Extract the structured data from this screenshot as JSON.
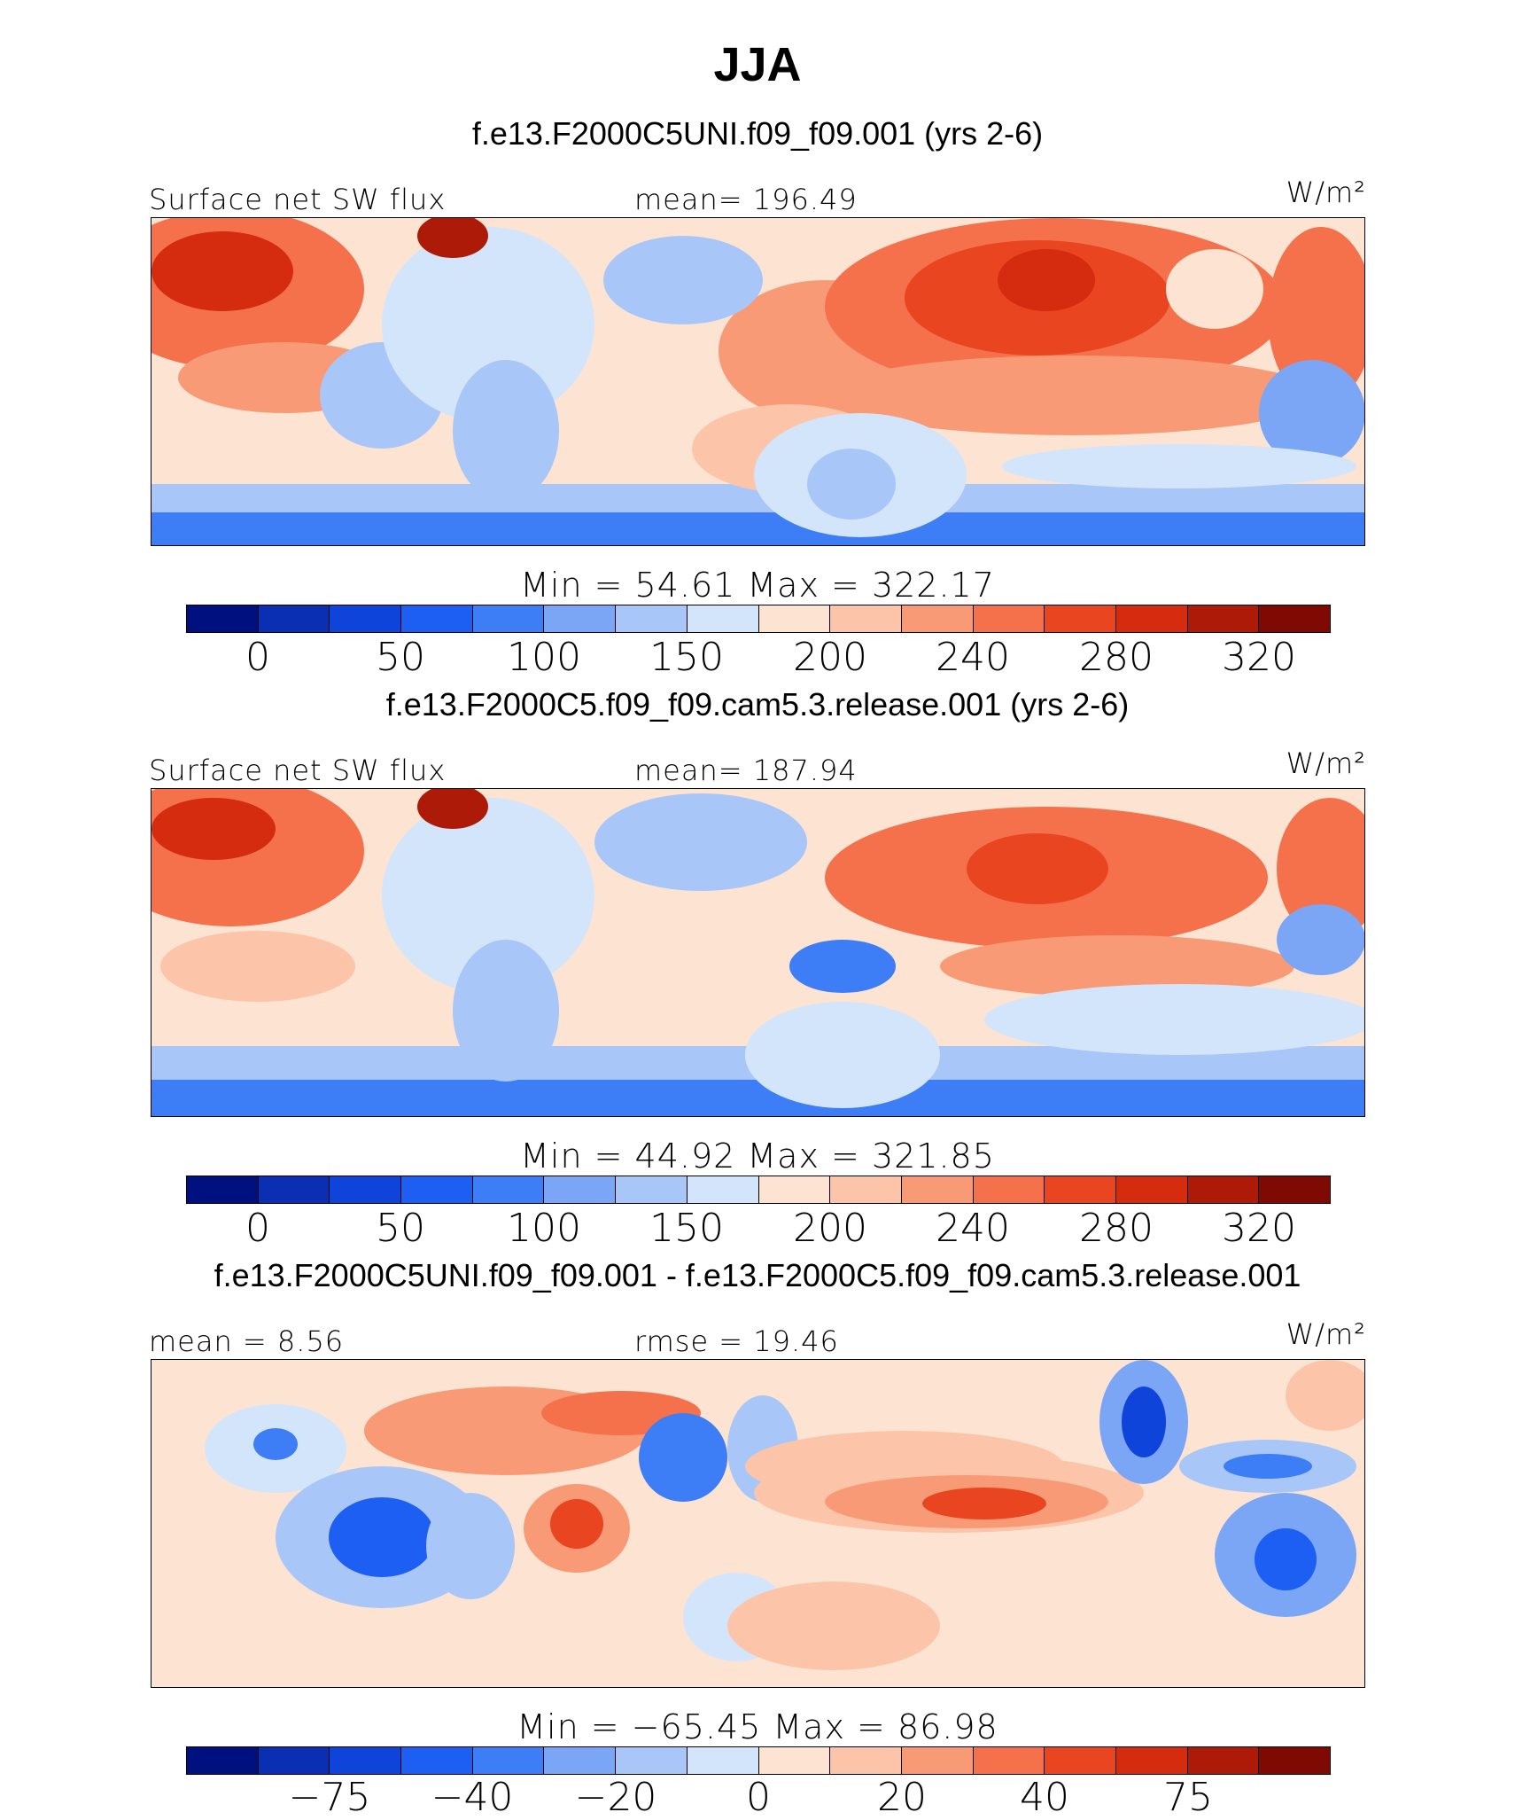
{
  "title": "JJA",
  "panels": [
    {
      "subtitle": "f.e13.F2000C5UNI.f09_f09.001 (yrs 2-6)",
      "variable": "Surface net SW flux",
      "stat": "mean=  196.49",
      "units": "W/m²",
      "minmax": "Min  =   54.61  Max  =  322.17",
      "colorbar": {
        "colors": [
          "#00107f",
          "#0a2fb2",
          "#0e44d9",
          "#1d5ff2",
          "#3d7ef6",
          "#7aa6f5",
          "#a9c6f8",
          "#d3e5fb",
          "#fde4d2",
          "#fcc5a9",
          "#f99a76",
          "#f5714c",
          "#e94521",
          "#d52b0f",
          "#ad1a07",
          "#7f0a03"
        ],
        "ticks": [
          "0",
          "50",
          "100",
          "150",
          "200",
          "240",
          "280",
          "320"
        ]
      }
    },
    {
      "subtitle": "f.e13.F2000C5.f09_f09.cam5.3.release.001 (yrs 2-6)",
      "variable": "Surface net SW flux",
      "stat": "mean=  187.94",
      "units": "W/m²",
      "minmax": "Min  =   44.92  Max  =  321.85",
      "colorbar": {
        "colors": [
          "#00107f",
          "#0a2fb2",
          "#0e44d9",
          "#1d5ff2",
          "#3d7ef6",
          "#7aa6f5",
          "#a9c6f8",
          "#d3e5fb",
          "#fde4d2",
          "#fcc5a9",
          "#f99a76",
          "#f5714c",
          "#e94521",
          "#d52b0f",
          "#ad1a07",
          "#7f0a03"
        ],
        "ticks": [
          "0",
          "50",
          "100",
          "150",
          "200",
          "240",
          "280",
          "320"
        ]
      }
    },
    {
      "subtitle": "f.e13.F2000C5UNI.f09_f09.001 - f.e13.F2000C5.f09_f09.cam5.3.release.001",
      "variable": "mean  =    8.56",
      "stat": "rmse  =   19.46",
      "units": "W/m²",
      "minmax": "Min  =  −65.45  Max  =   86.98",
      "colorbar": {
        "colors": [
          "#00107f",
          "#0a2fb2",
          "#0e44d9",
          "#1d5ff2",
          "#3d7ef6",
          "#7aa6f5",
          "#a9c6f8",
          "#d3e5fb",
          "#fde4d2",
          "#fcc5a9",
          "#f99a76",
          "#f5714c",
          "#e94521",
          "#d52b0f",
          "#ad1a07",
          "#7f0a03"
        ],
        "ticks": [
          "−75",
          "−40",
          "−20",
          "0",
          "20",
          "40",
          "75"
        ]
      }
    }
  ]
}
